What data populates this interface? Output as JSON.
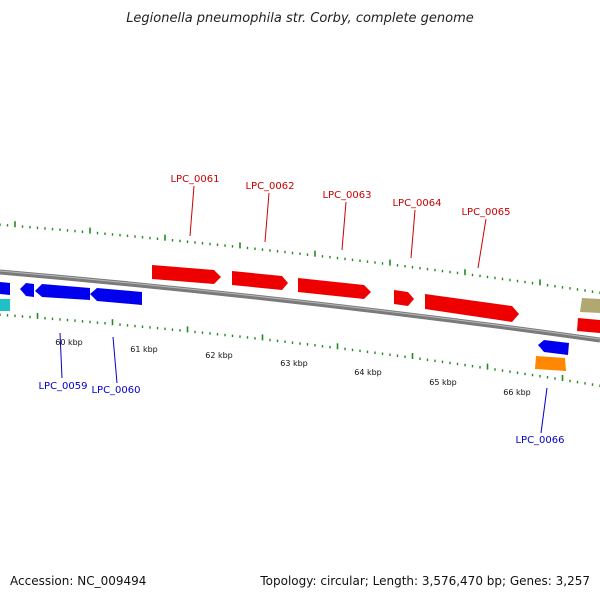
{
  "title": "Legionella pneumophila str. Corby, complete genome",
  "footer": {
    "accession": "Accession: NC_009494",
    "summary": "Topology: circular; Length: 3,576,470 bp; Genes: 3,257"
  },
  "colors": {
    "backbone": "#7a7a7a",
    "forward_gene": "#ee0000",
    "reverse_gene": "#0000ee",
    "ticks": "#228b22",
    "label_forward": "#cc0000",
    "label_reverse": "#0000cc",
    "cyan_feature": "#20c0c8",
    "orange_feature": "#ff8800",
    "olive_feature": "#b0a870"
  },
  "tick_labels": [
    "60 kbp",
    "61 kbp",
    "62 kbp",
    "63 kbp",
    "64 kbp",
    "65 kbp",
    "66 kbp"
  ],
  "genes": [
    {
      "name": "LPC_0059",
      "strand": "reverse",
      "color": "#0000ee"
    },
    {
      "name": "LPC_0060",
      "strand": "reverse",
      "color": "#0000ee"
    },
    {
      "name": "LPC_0061",
      "strand": "forward",
      "color": "#ee0000"
    },
    {
      "name": "LPC_0062",
      "strand": "forward",
      "color": "#ee0000"
    },
    {
      "name": "LPC_0063",
      "strand": "forward",
      "color": "#ee0000"
    },
    {
      "name": "LPC_0064",
      "strand": "forward",
      "color": "#ee0000"
    },
    {
      "name": "LPC_0065",
      "strand": "forward",
      "color": "#ee0000"
    },
    {
      "name": "LPC_0066",
      "strand": "reverse",
      "color": "#0000ee"
    }
  ]
}
